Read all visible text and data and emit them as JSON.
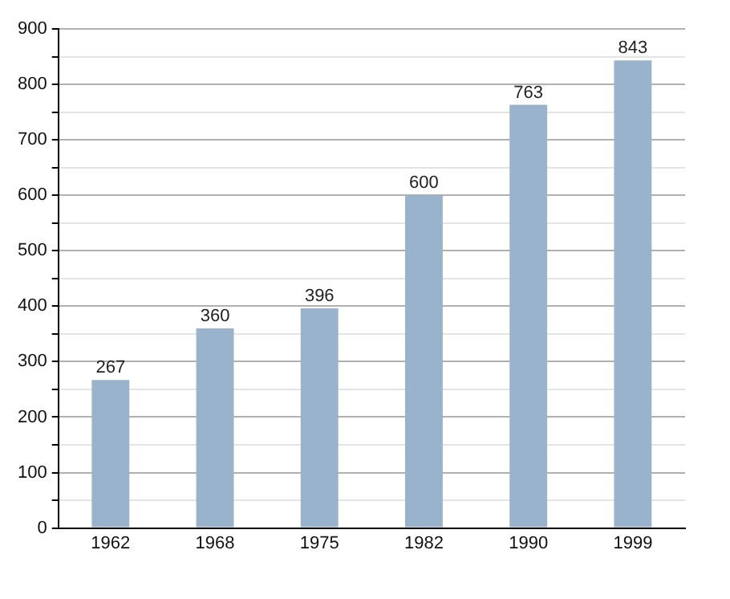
{
  "chart_data": {
    "type": "bar",
    "categories": [
      "1962",
      "1968",
      "1975",
      "1982",
      "1990",
      "1999"
    ],
    "values": [
      267,
      360,
      396,
      600,
      763,
      843
    ],
    "color": "#9ab3cd",
    "ylim": [
      0,
      900
    ],
    "yticks": [
      0,
      {
        "value": 50,
        "label": null
      },
      100,
      {
        "value": 150,
        "label": null
      },
      200,
      {
        "value": 250,
        "label": null
      },
      300,
      {
        "value": 350,
        "label": null
      },
      400,
      {
        "value": 450,
        "label": null
      },
      500,
      {
        "value": 550,
        "label": null
      },
      600,
      {
        "value": 650,
        "label": null
      },
      700,
      {
        "value": 750,
        "label": null
      },
      800,
      {
        "value": 850,
        "label": null
      },
      900
    ],
    "grid": "y",
    "data_labels": true,
    "legend": false
  }
}
